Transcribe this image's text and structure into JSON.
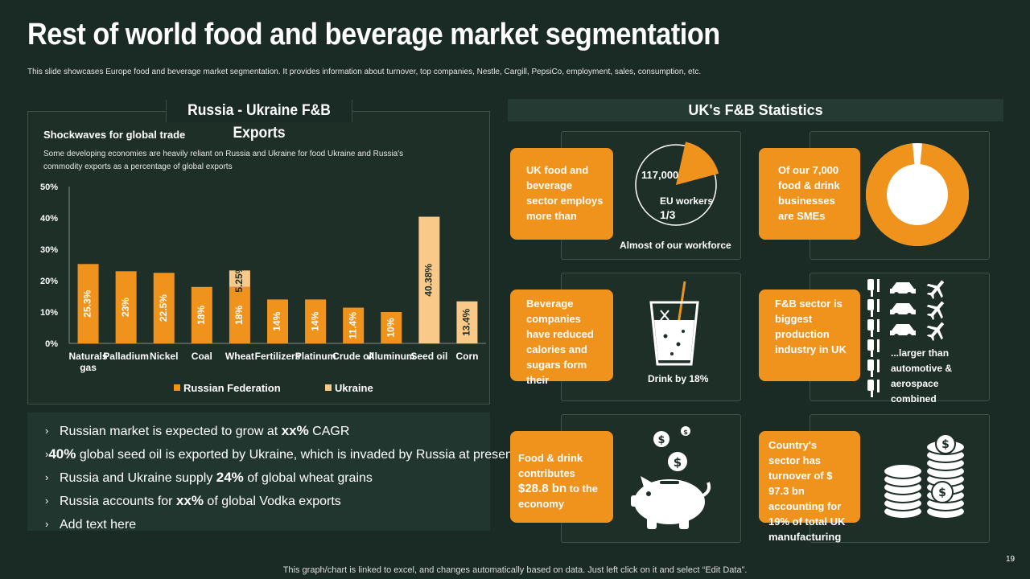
{
  "title": "Rest of world food and beverage market segmentation",
  "subtitle": "This slide showcases Europe food and beverage market segmentation. It provides information about turnover, top companies, Nestle, Cargill, PepsiCo, employment, sales, consumption, etc.",
  "left_panel": {
    "title": "Russia - Ukraine F&B Exports",
    "heading": "Shockwaves for global trade",
    "note": "Some developing economies are heavily reliant on Russia and Ukraine for food Ukraine and Russia's commodity exports as a percentage of global exports"
  },
  "chart_data": {
    "type": "bar",
    "stacked": true,
    "categories": [
      "Naturals gas",
      "Palladium",
      "Nickel",
      "Coal",
      "Wheat",
      "Fertilizers",
      "Platinum",
      "Crude oil",
      "Aluminum",
      "Seed oil",
      "Corn"
    ],
    "series": [
      {
        "name": "Russian Federation",
        "values": [
          25.3,
          23,
          22.5,
          18,
          18,
          14,
          14,
          11.4,
          10,
          null,
          null
        ],
        "labels": [
          "25.3%",
          "23%",
          "22.5%",
          "18%",
          "18%",
          "14%",
          "14%",
          "11.4%",
          "10%",
          "",
          ""
        ],
        "color": "#f0931d"
      },
      {
        "name": "Ukraine",
        "values": [
          null,
          null,
          null,
          null,
          5.25,
          null,
          null,
          null,
          null,
          40.38,
          13.4
        ],
        "labels": [
          "",
          "",
          "",
          "",
          "5.25%",
          "",
          "",
          "",
          "",
          "40.38%",
          "13.4%"
        ],
        "color": "#f9c98a"
      }
    ],
    "yticks": [
      "0%",
      "10%",
      "20%",
      "30%",
      "40%",
      "50%"
    ],
    "ylim": [
      0,
      50
    ],
    "legend": "bottom",
    "grid": false
  },
  "bullets": [
    {
      "pre": "Russian market is expected to grow at ",
      "bold": "xx%",
      "post": " CAGR"
    },
    {
      "pre": "",
      "bold": "40%",
      "post": " global seed oil is exported by Ukraine, which is invaded by Russia at present"
    },
    {
      "pre": "Russia and Ukraine supply ",
      "bold": "24%",
      "post": " of global wheat grains"
    },
    {
      "pre": "Russia accounts for ",
      "bold": "xx%",
      "post": " of global Vodka exports"
    },
    {
      "pre": "Add text here",
      "bold": "",
      "post": ""
    }
  ],
  "uk": {
    "header": "UK's F&B Statistics",
    "workforce": {
      "box": "UK food and beverage sector employs more than",
      "count": "117,000",
      "fraction_label": "EU workers",
      "fraction": "1/3",
      "fraction_value": 0.33,
      "caption": "Almost of our workforce"
    },
    "sme": {
      "box": "Of our 7,000 food & drink businesses are SMEs",
      "share": 0.97
    },
    "beverage": {
      "box": "Beverage companies have reduced calories and sugars form their",
      "caption": "Drink by 18%"
    },
    "industry": {
      "box": "F&B sector is biggest production industry in UK",
      "caption": "...larger than automotive & aerospace combined"
    },
    "economy": {
      "box_pre": "Food & drink contributes ",
      "box_bold": "$28.8 bn",
      "box_post": " to the economy"
    },
    "turnover": {
      "box": "Country's sector has turnover of $ 97.3 bn accounting for 19% of total UK manufacturing"
    }
  },
  "colors": {
    "accent": "#f0931d",
    "light_accent": "#f9c98a",
    "background": "#1a2a24"
  },
  "footer": "This graph/chart is linked to excel, and changes automatically based on data. Just left click on it and select “Edit Data”.",
  "page_number": "19"
}
